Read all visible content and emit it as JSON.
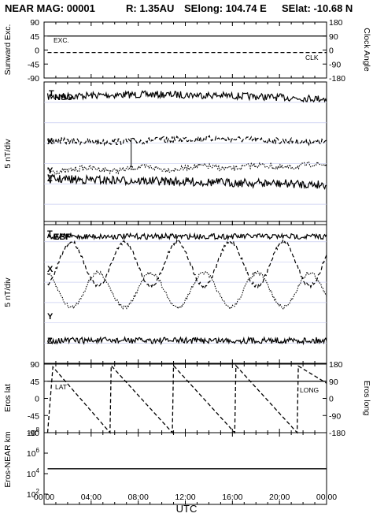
{
  "header": {
    "mission": "NEAR MAG: 00001",
    "range": "R: 1.35AU",
    "selong": "SElong:  104.74 E",
    "selat": "SElat:  -10.68 N"
  },
  "x_axis": {
    "label": "UTC",
    "ticks": [
      "00:00",
      "04:00",
      "08:00",
      "12:00",
      "16:00",
      "20:00",
      "00:00"
    ],
    "hours": [
      0,
      4,
      8,
      12,
      16,
      20,
      24
    ]
  },
  "colors": {
    "line": "#000000",
    "grid": "#c8ccf0",
    "background": "#ffffff"
  },
  "chart_data": [
    {
      "type": "line",
      "panel": "sunward-clock",
      "ylabel": "Sunward Exc.",
      "ylabel_right": "Clock Angle",
      "ylim": [
        -90,
        90
      ],
      "ylim_right": [
        -180,
        180
      ],
      "yticks": [
        "90",
        "45",
        "0",
        "-45",
        "-90"
      ],
      "yticks_right": [
        "180",
        "90",
        "0",
        "-90",
        "-180"
      ],
      "series": [
        {
          "name": "EXC.",
          "x": [
            0.3,
            24
          ],
          "values": [
            45,
            45
          ],
          "style": "solid"
        },
        {
          "name": "CLK",
          "x": [
            0.3,
            24
          ],
          "values": [
            -8,
            -8
          ],
          "style": "dashed"
        }
      ]
    },
    {
      "type": "line",
      "panel": "nso",
      "ylabel": "5 nT/div",
      "frame": "NSO",
      "components": [
        "T",
        "X",
        "Y",
        "Z"
      ],
      "x_range_hours": [
        0.3,
        24
      ],
      "series_levels_nT": {
        "T": 65,
        "X": 31,
        "Y": 13,
        "Z": 6
      }
    },
    {
      "type": "line",
      "panel": "ebf",
      "ylabel": "5 nT/div",
      "frame": "EBF",
      "components": [
        "T",
        "X",
        "Y",
        "Z"
      ],
      "x_range_hours": [
        0.3,
        24
      ],
      "series_levels_nT": {
        "T": 60,
        "X": 37,
        "Y": 25,
        "Z": 5
      },
      "oscillation_period_hours": 4.5
    },
    {
      "type": "line",
      "panel": "eros-lat-long",
      "ylabel": "Eros lat",
      "ylabel_right": "Eros long",
      "ylim": [
        -90,
        90
      ],
      "ylim_right": [
        -180,
        180
      ],
      "yticks": [
        "90",
        "45",
        "0",
        "-45",
        "-90"
      ],
      "yticks_right": [
        "180",
        "90",
        "0",
        "-90",
        "-180"
      ],
      "series": [
        {
          "name": "LAT",
          "x": [
            0.3,
            24
          ],
          "values": [
            45,
            45
          ],
          "style": "solid"
        },
        {
          "name": "LONG",
          "style": "dashed",
          "sawtooth": [
            [
              0.3,
              -180
            ],
            [
              0.75,
              165
            ],
            [
              5.6,
              -180
            ],
            [
              5.7,
              172
            ],
            [
              10.9,
              -180
            ],
            [
              11.0,
              172
            ],
            [
              16.2,
              -180
            ],
            [
              16.3,
              172
            ],
            [
              21.5,
              -180
            ],
            [
              21.6,
              170
            ],
            [
              24,
              80
            ]
          ]
        }
      ]
    },
    {
      "type": "line",
      "panel": "eros-near-range",
      "ylabel": "Eros-NEAR km",
      "yscale": "log",
      "ylim": [
        10,
        100000000
      ],
      "yticks": [
        "10^8",
        "10^6",
        "10^4",
        "10^2"
      ],
      "series": [
        {
          "name": "Eros-NEAR km",
          "x": [
            0.3,
            24
          ],
          "values": [
            30000,
            30000
          ],
          "style": "solid"
        }
      ]
    }
  ]
}
